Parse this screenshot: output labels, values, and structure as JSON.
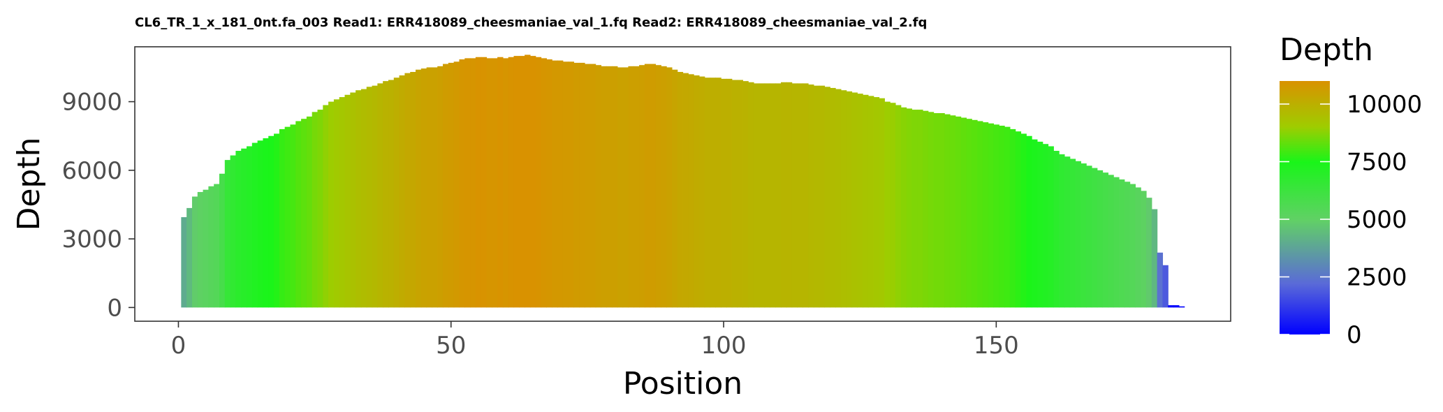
{
  "chart_data": {
    "type": "bar",
    "title": "CL6_TR_1_x_181_0nt.fa_003 Read1: ERR418089_cheesmaniae_val_1.fq Read2: ERR418089_cheesmaniae_val_2.fq",
    "xlabel": "Position",
    "ylabel": "Depth",
    "xlim": [
      -8,
      193
    ],
    "ylim": [
      -600,
      11400
    ],
    "x_ticks": [
      0,
      50,
      100,
      150
    ],
    "y_ticks": [
      0,
      3000,
      6000,
      9000
    ],
    "grid": false,
    "legend": {
      "title": "Depth",
      "placement": "right",
      "type": "colorbar",
      "ticks": [
        0,
        2500,
        5000,
        7500,
        10000
      ],
      "range": [
        0,
        11000
      ],
      "colors": [
        "#0000ff",
        "#5a6ad8",
        "#61d066",
        "#19f519",
        "#9fcc00",
        "#d99200"
      ],
      "color_stops": [
        0,
        0.2,
        0.45,
        0.68,
        0.82,
        1
      ]
    },
    "x": [
      1,
      2,
      3,
      4,
      5,
      6,
      7,
      8,
      9,
      10,
      11,
      12,
      13,
      14,
      15,
      16,
      17,
      18,
      19,
      20,
      21,
      22,
      23,
      24,
      25,
      26,
      27,
      28,
      29,
      30,
      31,
      32,
      33,
      34,
      35,
      36,
      37,
      38,
      39,
      40,
      41,
      42,
      43,
      44,
      45,
      46,
      47,
      48,
      49,
      50,
      51,
      52,
      53,
      54,
      55,
      56,
      57,
      58,
      59,
      60,
      61,
      62,
      63,
      64,
      65,
      66,
      67,
      68,
      69,
      70,
      71,
      72,
      73,
      74,
      75,
      76,
      77,
      78,
      79,
      80,
      81,
      82,
      83,
      84,
      85,
      86,
      87,
      88,
      89,
      90,
      91,
      92,
      93,
      94,
      95,
      96,
      97,
      98,
      99,
      100,
      101,
      102,
      103,
      104,
      105,
      106,
      107,
      108,
      109,
      110,
      111,
      112,
      113,
      114,
      115,
      116,
      117,
      118,
      119,
      120,
      121,
      122,
      123,
      124,
      125,
      126,
      127,
      128,
      129,
      130,
      131,
      132,
      133,
      134,
      135,
      136,
      137,
      138,
      139,
      140,
      141,
      142,
      143,
      144,
      145,
      146,
      147,
      148,
      149,
      150,
      151,
      152,
      153,
      154,
      155,
      156,
      157,
      158,
      159,
      160,
      161,
      162,
      163,
      164,
      165,
      166,
      167,
      168,
      169,
      170,
      171,
      172,
      173,
      174,
      175,
      176,
      177,
      178,
      179,
      180,
      181,
      182,
      183,
      184
    ],
    "values": [
      3950,
      4350,
      4850,
      5050,
      5150,
      5300,
      5400,
      5850,
      6450,
      6650,
      6850,
      6950,
      7050,
      7200,
      7300,
      7400,
      7500,
      7600,
      7800,
      7900,
      8000,
      8150,
      8250,
      8350,
      8550,
      8650,
      8850,
      9000,
      9100,
      9200,
      9300,
      9400,
      9500,
      9550,
      9650,
      9700,
      9800,
      9900,
      9950,
      10050,
      10150,
      10250,
      10300,
      10400,
      10450,
      10500,
      10500,
      10550,
      10650,
      10700,
      10750,
      10850,
      10900,
      10900,
      10950,
      10950,
      10900,
      10900,
      10950,
      10900,
      10950,
      11000,
      11000,
      11050,
      11000,
      10950,
      10900,
      10850,
      10800,
      10800,
      10750,
      10750,
      10700,
      10700,
      10650,
      10650,
      10600,
      10550,
      10550,
      10550,
      10500,
      10500,
      10550,
      10550,
      10600,
      10650,
      10650,
      10600,
      10550,
      10500,
      10400,
      10300,
      10250,
      10200,
      10150,
      10100,
      10050,
      10050,
      10050,
      10000,
      10000,
      9950,
      9950,
      9900,
      9850,
      9800,
      9800,
      9800,
      9800,
      9800,
      9850,
      9850,
      9800,
      9800,
      9800,
      9750,
      9700,
      9700,
      9650,
      9600,
      9550,
      9500,
      9450,
      9400,
      9350,
      9300,
      9250,
      9200,
      9150,
      9000,
      8950,
      8850,
      8750,
      8700,
      8650,
      8650,
      8600,
      8550,
      8500,
      8500,
      8450,
      8400,
      8350,
      8300,
      8250,
      8200,
      8150,
      8100,
      8050,
      8000,
      7950,
      7900,
      7800,
      7700,
      7600,
      7500,
      7350,
      7250,
      7150,
      7050,
      6850,
      6700,
      6600,
      6500,
      6400,
      6300,
      6200,
      6100,
      6000,
      5900,
      5800,
      5700,
      5600,
      5500,
      5400,
      5250,
      5100,
      4800,
      4300,
      2400,
      1850,
      100,
      100,
      50
    ]
  }
}
